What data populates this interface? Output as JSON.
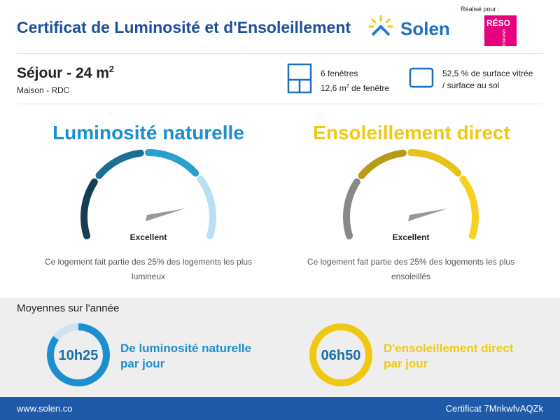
{
  "header": {
    "title": "Certificat de Luminosité et d'Ensoleillement",
    "brand": "Solen",
    "made_for": "Réalisé pour :",
    "partner_logo": "RÉSO",
    "partner_logo_sub": "IMMOBILIER"
  },
  "room": {
    "name": "Séjour - 24 m",
    "name_sup": "2",
    "subtitle": "Maison - RDC"
  },
  "windows": {
    "count": "6 fenêtres",
    "area": "12,6 m",
    "area_sup": "2",
    "area_suffix": " de fenêtre"
  },
  "glazing": {
    "line1": "52,5 % de surface vitrée",
    "line2": "/ surface au sol"
  },
  "gauges": [
    {
      "title": "Luminosité naturelle",
      "rating": "Excellent",
      "description": "Ce logement fait partie des 25% des logements les plus lumineux"
    },
    {
      "title": "Ensoleillement direct",
      "rating": "Excellent",
      "description": "Ce logement fait partie des 25% des logements les plus ensoleillés"
    }
  ],
  "averages": {
    "title": "Moyennes sur l'année",
    "items": [
      {
        "value": "10h25",
        "line1": "De luminosité naturelle",
        "line2": "par jour"
      },
      {
        "value": "06h50",
        "line1": "D'ensoleillement direct",
        "line2": "par jour"
      }
    ]
  },
  "footer": {
    "website": "www.solen.co",
    "certificate": "Certificat 7MnkwfvAQZk"
  }
}
